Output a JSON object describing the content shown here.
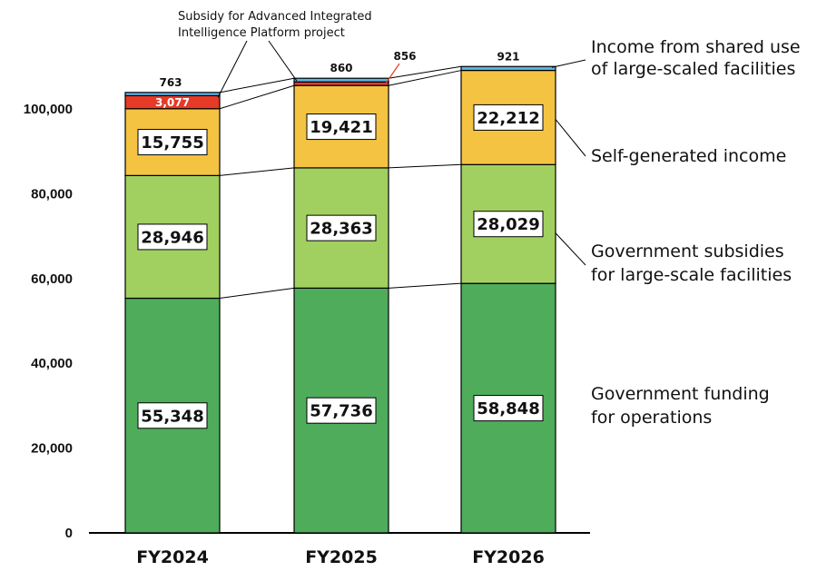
{
  "chart_data": {
    "type": "bar",
    "stacked": true,
    "categories": [
      "FY2024",
      "FY2025",
      "FY2026"
    ],
    "ylim": [
      0,
      120000
    ],
    "yticks": [
      0,
      20000,
      40000,
      60000,
      80000,
      100000
    ],
    "ytick_labels": [
      "0",
      "20,000",
      "40,000",
      "60,000",
      "80,000",
      "100,000"
    ],
    "grid": false,
    "legend_position": "right (labels beside the FY2026 bar)",
    "series": [
      {
        "name": "Government funding\nfor operations",
        "key": "ops",
        "color": "#4fac5b",
        "values": [
          55348,
          57736,
          58848
        ],
        "labels": [
          "55,348",
          "57,736",
          "58,848"
        ]
      },
      {
        "name": "Government subsidies\nfor large-scale facilities",
        "key": "fac",
        "color": "#a2d060",
        "values": [
          28946,
          28363,
          28029
        ],
        "labels": [
          "28,946",
          "28,363",
          "28,029"
        ]
      },
      {
        "name": "Self-generated income",
        "key": "self",
        "color": "#f4c342",
        "values": [
          15755,
          19421,
          22212
        ],
        "labels": [
          "15,755",
          "19,421",
          "22,212"
        ]
      },
      {
        "name": "Subsidy for Advanced Integrated\nIntelligence Platform project",
        "key": "aip",
        "color": "#e53a27",
        "values": [
          3077,
          856,
          0
        ],
        "labels": [
          "3,077",
          "856",
          ""
        ]
      },
      {
        "name": "Income from shared use\nof large-scaled facilities",
        "key": "shared",
        "color": "#5ab4e6",
        "values": [
          763,
          860,
          921
        ],
        "labels": [
          "763",
          "860",
          "921"
        ]
      }
    ]
  }
}
